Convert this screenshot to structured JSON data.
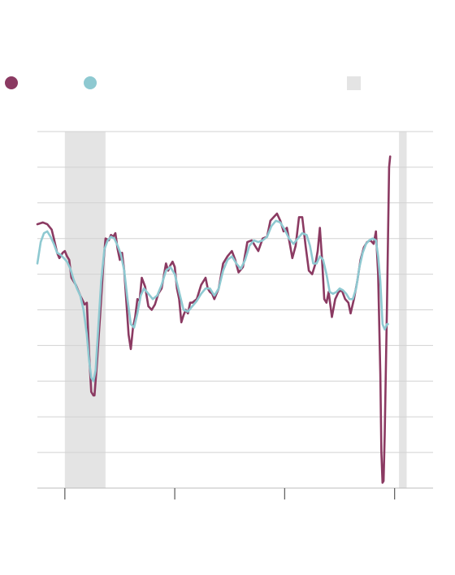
{
  "colors": {
    "series_a": "#8b3a62",
    "series_b": "#8ec9d1",
    "shade": "#e4e4e4",
    "grid": "#d2d2d2",
    "axis": "#666666"
  },
  "legend": {
    "items": [
      {
        "icon": "circle",
        "color": "#8b3a62",
        "label": ""
      },
      {
        "icon": "circle",
        "color": "#8ec9d1",
        "label": ""
      },
      {
        "icon": "square",
        "color": "#e4e4e4",
        "label": ""
      }
    ]
  },
  "chart_data": {
    "type": "line",
    "title": "",
    "xlabel": "",
    "ylabel": "",
    "grid": true,
    "x_ticks": [
      0,
      1,
      2,
      3
    ],
    "xlim": [
      -0.25,
      3.35
    ],
    "ylim": [
      0,
      10
    ],
    "y_grid": [
      0,
      1,
      2,
      3,
      4,
      5,
      6,
      7,
      8,
      9,
      10
    ],
    "shaded_periods": [
      [
        0,
        0.37
      ],
      [
        3.04,
        3.11
      ]
    ],
    "series": [
      {
        "name": "",
        "color": "#8b3a62",
        "points": [
          [
            -0.25,
            7.4
          ],
          [
            -0.2,
            7.45
          ],
          [
            -0.16,
            7.4
          ],
          [
            -0.12,
            7.25
          ],
          [
            -0.1,
            7.0
          ],
          [
            -0.07,
            6.6
          ],
          [
            -0.05,
            6.45
          ],
          [
            -0.02,
            6.6
          ],
          [
            0,
            6.65
          ],
          [
            0.02,
            6.5
          ],
          [
            0.04,
            6.4
          ],
          [
            0.06,
            5.9
          ],
          [
            0.1,
            5.7
          ],
          [
            0.14,
            5.4
          ],
          [
            0.18,
            5.15
          ],
          [
            0.2,
            5.2
          ],
          [
            0.22,
            3.8
          ],
          [
            0.24,
            2.7
          ],
          [
            0.26,
            2.6
          ],
          [
            0.27,
            2.6
          ],
          [
            0.29,
            3.4
          ],
          [
            0.32,
            4.8
          ],
          [
            0.35,
            6.3
          ],
          [
            0.37,
            7.0
          ],
          [
            0.4,
            6.95
          ],
          [
            0.42,
            7.1
          ],
          [
            0.44,
            7.05
          ],
          [
            0.46,
            7.15
          ],
          [
            0.48,
            6.7
          ],
          [
            0.5,
            6.4
          ],
          [
            0.52,
            6.6
          ],
          [
            0.54,
            6.1
          ],
          [
            0.56,
            5.2
          ],
          [
            0.58,
            4.3
          ],
          [
            0.6,
            3.9
          ],
          [
            0.62,
            4.5
          ],
          [
            0.64,
            4.8
          ],
          [
            0.66,
            5.3
          ],
          [
            0.68,
            5.25
          ],
          [
            0.7,
            5.9
          ],
          [
            0.73,
            5.65
          ],
          [
            0.76,
            5.1
          ],
          [
            0.79,
            5.0
          ],
          [
            0.82,
            5.15
          ],
          [
            0.85,
            5.45
          ],
          [
            0.88,
            5.6
          ],
          [
            0.9,
            5.95
          ],
          [
            0.92,
            6.3
          ],
          [
            0.94,
            6.1
          ],
          [
            0.96,
            6.25
          ],
          [
            0.98,
            6.35
          ],
          [
            1.0,
            6.2
          ],
          [
            1.02,
            5.6
          ],
          [
            1.04,
            5.3
          ],
          [
            1.06,
            4.65
          ],
          [
            1.08,
            4.85
          ],
          [
            1.1,
            5.0
          ],
          [
            1.12,
            4.9
          ],
          [
            1.14,
            5.2
          ],
          [
            1.16,
            5.2
          ],
          [
            1.2,
            5.3
          ],
          [
            1.24,
            5.7
          ],
          [
            1.28,
            5.9
          ],
          [
            1.3,
            5.6
          ],
          [
            1.32,
            5.5
          ],
          [
            1.34,
            5.45
          ],
          [
            1.36,
            5.3
          ],
          [
            1.4,
            5.6
          ],
          [
            1.44,
            6.3
          ],
          [
            1.48,
            6.5
          ],
          [
            1.52,
            6.65
          ],
          [
            1.55,
            6.4
          ],
          [
            1.58,
            6.05
          ],
          [
            1.62,
            6.2
          ],
          [
            1.66,
            6.9
          ],
          [
            1.7,
            6.95
          ],
          [
            1.73,
            6.8
          ],
          [
            1.76,
            6.65
          ],
          [
            1.8,
            7.0
          ],
          [
            1.84,
            7.05
          ],
          [
            1.87,
            7.5
          ],
          [
            1.9,
            7.6
          ],
          [
            1.93,
            7.7
          ],
          [
            1.96,
            7.5
          ],
          [
            1.99,
            7.2
          ],
          [
            2.02,
            7.3
          ],
          [
            2.05,
            6.8
          ],
          [
            2.07,
            6.45
          ],
          [
            2.1,
            6.8
          ],
          [
            2.13,
            7.6
          ],
          [
            2.16,
            7.6
          ],
          [
            2.19,
            6.8
          ],
          [
            2.22,
            6.1
          ],
          [
            2.25,
            6.0
          ],
          [
            2.28,
            6.3
          ],
          [
            2.3,
            6.65
          ],
          [
            2.32,
            7.3
          ],
          [
            2.34,
            6.4
          ],
          [
            2.36,
            5.3
          ],
          [
            2.38,
            5.2
          ],
          [
            2.4,
            5.5
          ],
          [
            2.43,
            4.8
          ],
          [
            2.46,
            5.3
          ],
          [
            2.49,
            5.5
          ],
          [
            2.52,
            5.55
          ],
          [
            2.55,
            5.3
          ],
          [
            2.58,
            5.2
          ],
          [
            2.6,
            4.9
          ],
          [
            2.63,
            5.3
          ],
          [
            2.66,
            5.8
          ],
          [
            2.69,
            6.4
          ],
          [
            2.72,
            6.75
          ],
          [
            2.75,
            6.9
          ],
          [
            2.78,
            6.95
          ],
          [
            2.81,
            6.85
          ],
          [
            2.83,
            7.2
          ],
          [
            2.85,
            6.0
          ],
          [
            2.87,
            3.2
          ],
          [
            2.88,
            1.0
          ],
          [
            2.89,
            0.15
          ],
          [
            2.9,
            0.2
          ],
          [
            2.91,
            1.5
          ],
          [
            2.93,
            5.0
          ],
          [
            2.95,
            9.0
          ],
          [
            2.96,
            9.3
          ]
        ]
      },
      {
        "name": "",
        "color": "#8ec9d1",
        "points": [
          [
            -0.25,
            6.3
          ],
          [
            -0.22,
            6.9
          ],
          [
            -0.19,
            7.15
          ],
          [
            -0.16,
            7.2
          ],
          [
            -0.13,
            7.05
          ],
          [
            -0.1,
            6.85
          ],
          [
            -0.07,
            6.6
          ],
          [
            -0.04,
            6.55
          ],
          [
            -0.01,
            6.45
          ],
          [
            0.02,
            6.35
          ],
          [
            0.05,
            6.15
          ],
          [
            0.08,
            5.85
          ],
          [
            0.11,
            5.6
          ],
          [
            0.14,
            5.4
          ],
          [
            0.17,
            5.0
          ],
          [
            0.2,
            4.3
          ],
          [
            0.22,
            3.6
          ],
          [
            0.24,
            3.1
          ],
          [
            0.26,
            3.0
          ],
          [
            0.28,
            3.3
          ],
          [
            0.3,
            4.3
          ],
          [
            0.33,
            5.8
          ],
          [
            0.36,
            6.7
          ],
          [
            0.39,
            6.95
          ],
          [
            0.42,
            7.05
          ],
          [
            0.45,
            7.0
          ],
          [
            0.48,
            6.8
          ],
          [
            0.51,
            6.55
          ],
          [
            0.54,
            6.1
          ],
          [
            0.57,
            5.3
          ],
          [
            0.6,
            4.6
          ],
          [
            0.63,
            4.5
          ],
          [
            0.66,
            4.9
          ],
          [
            0.69,
            5.4
          ],
          [
            0.72,
            5.6
          ],
          [
            0.76,
            5.45
          ],
          [
            0.8,
            5.3
          ],
          [
            0.84,
            5.4
          ],
          [
            0.88,
            5.7
          ],
          [
            0.92,
            6.1
          ],
          [
            0.96,
            6.2
          ],
          [
            1.0,
            6.0
          ],
          [
            1.04,
            5.5
          ],
          [
            1.08,
            5.0
          ],
          [
            1.12,
            4.95
          ],
          [
            1.16,
            5.1
          ],
          [
            1.2,
            5.25
          ],
          [
            1.24,
            5.45
          ],
          [
            1.28,
            5.6
          ],
          [
            1.32,
            5.6
          ],
          [
            1.36,
            5.4
          ],
          [
            1.4,
            5.6
          ],
          [
            1.44,
            6.1
          ],
          [
            1.48,
            6.4
          ],
          [
            1.52,
            6.5
          ],
          [
            1.56,
            6.3
          ],
          [
            1.6,
            6.15
          ],
          [
            1.64,
            6.4
          ],
          [
            1.68,
            6.8
          ],
          [
            1.72,
            6.95
          ],
          [
            1.76,
            6.9
          ],
          [
            1.8,
            6.95
          ],
          [
            1.84,
            7.05
          ],
          [
            1.88,
            7.35
          ],
          [
            1.92,
            7.5
          ],
          [
            1.96,
            7.45
          ],
          [
            2.0,
            7.25
          ],
          [
            2.04,
            7.0
          ],
          [
            2.08,
            6.85
          ],
          [
            2.12,
            7.0
          ],
          [
            2.16,
            7.15
          ],
          [
            2.2,
            7.1
          ],
          [
            2.23,
            6.8
          ],
          [
            2.26,
            6.3
          ],
          [
            2.29,
            6.3
          ],
          [
            2.32,
            6.5
          ],
          [
            2.35,
            6.4
          ],
          [
            2.38,
            6.0
          ],
          [
            2.41,
            5.5
          ],
          [
            2.44,
            5.45
          ],
          [
            2.47,
            5.5
          ],
          [
            2.5,
            5.6
          ],
          [
            2.53,
            5.55
          ],
          [
            2.56,
            5.45
          ],
          [
            2.59,
            5.3
          ],
          [
            2.62,
            5.3
          ],
          [
            2.65,
            5.6
          ],
          [
            2.68,
            6.2
          ],
          [
            2.71,
            6.6
          ],
          [
            2.74,
            6.85
          ],
          [
            2.77,
            6.95
          ],
          [
            2.8,
            7.0
          ],
          [
            2.83,
            6.95
          ],
          [
            2.85,
            6.5
          ],
          [
            2.87,
            5.8
          ],
          [
            2.89,
            4.6
          ],
          [
            2.91,
            4.45
          ],
          [
            2.93,
            4.6
          ],
          [
            2.94,
            4.6
          ]
        ]
      }
    ]
  }
}
